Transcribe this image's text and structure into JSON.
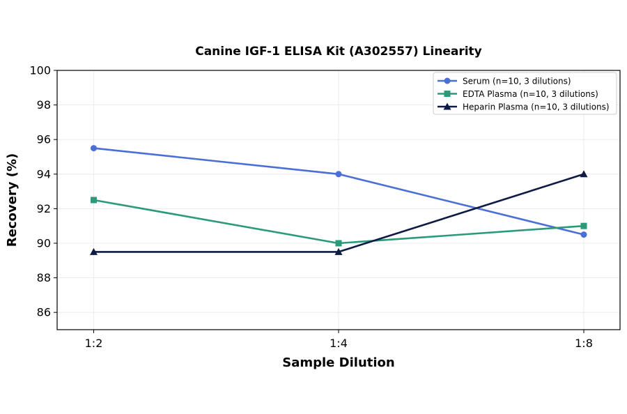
{
  "chart_data": {
    "type": "line",
    "title": "Canine IGF-1 ELISA Kit (A302557) Linearity",
    "xlabel": "Sample Dilution",
    "ylabel": "Recovery (%)",
    "categories": [
      "1:2",
      "1:4",
      "1:8"
    ],
    "ylim": [
      85,
      100
    ],
    "yticks": [
      86,
      88,
      90,
      92,
      94,
      96,
      98,
      100
    ],
    "grid": true,
    "legend_position": "top-right",
    "series": [
      {
        "name": "Serum (n=10, 3 dilutions)",
        "values": [
          95.5,
          94.0,
          90.5
        ],
        "color": "#4a6fd6",
        "marker": "circle"
      },
      {
        "name": "EDTA Plasma (n=10, 3 dilutions)",
        "values": [
          92.5,
          90.0,
          91.0
        ],
        "color": "#2a9a78",
        "marker": "square"
      },
      {
        "name": "Heparin Plasma (n=10, 3 dilutions)",
        "values": [
          89.5,
          89.5,
          94.0
        ],
        "color": "#0f1a45",
        "marker": "triangle"
      }
    ]
  }
}
